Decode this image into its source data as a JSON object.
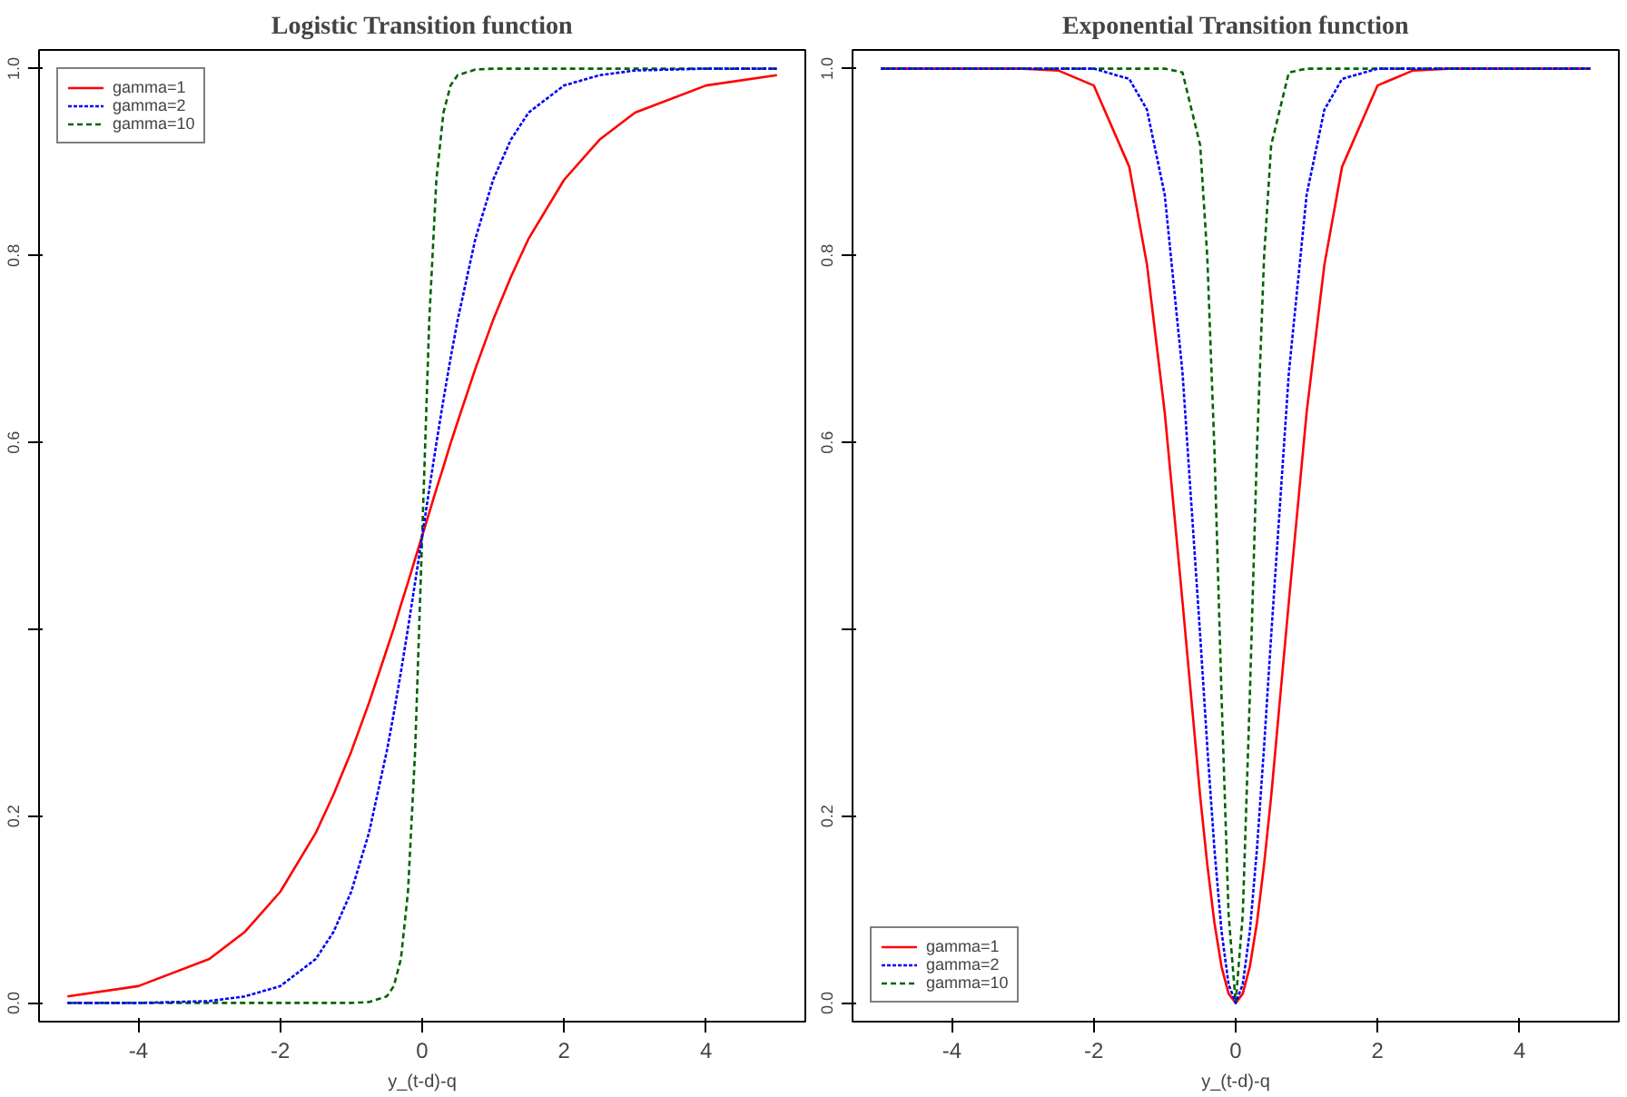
{
  "chart_data": [
    {
      "type": "line",
      "title": "Logistic Transition function",
      "xlabel": "y_(t-d)-q",
      "x": [
        -5,
        -4,
        -3,
        -2.5,
        -2,
        -1.5,
        -1.25,
        -1,
        -0.75,
        -0.5,
        -0.4,
        -0.3,
        -0.2,
        -0.1,
        0,
        0.1,
        0.2,
        0.3,
        0.4,
        0.5,
        0.75,
        1,
        1.25,
        1.5,
        2,
        2.5,
        3,
        4,
        5
      ],
      "series": [
        {
          "name": "gamma=1",
          "color": "#ff0000",
          "line_style": "solid",
          "values": [
            0.007,
            0.018,
            0.047,
            0.076,
            0.119,
            0.182,
            0.223,
            0.269,
            0.321,
            0.378,
            0.401,
            0.426,
            0.45,
            0.475,
            0.5,
            0.525,
            0.55,
            0.574,
            0.599,
            0.622,
            0.679,
            0.731,
            0.777,
            0.818,
            0.881,
            0.924,
            0.953,
            0.982,
            0.993
          ]
        },
        {
          "name": "gamma=2",
          "color": "#0000ff",
          "line_style": "dotted",
          "values": [
            0,
            0,
            0.002,
            0.007,
            0.018,
            0.047,
            0.076,
            0.119,
            0.182,
            0.269,
            0.31,
            0.354,
            0.401,
            0.45,
            0.5,
            0.55,
            0.599,
            0.646,
            0.69,
            0.731,
            0.818,
            0.881,
            0.924,
            0.953,
            0.982,
            0.993,
            0.998,
            1,
            1
          ]
        },
        {
          "name": "gamma=10",
          "color": "#006400",
          "line_style": "dashed",
          "values": [
            0,
            0,
            0,
            0,
            0,
            0,
            0,
            0,
            0.001,
            0.007,
            0.018,
            0.047,
            0.119,
            0.269,
            0.5,
            0.731,
            0.881,
            0.953,
            0.982,
            0.993,
            0.999,
            1,
            1,
            1,
            1,
            1,
            1,
            1,
            1
          ]
        }
      ],
      "xlim": [
        -5.4,
        5.4
      ],
      "ylim": [
        -0.02,
        1.02
      ],
      "xticks": [
        -4,
        -2,
        0,
        2,
        4
      ],
      "yticks": [
        {
          "value": 0,
          "label": "0.0"
        },
        0.2,
        {
          "value": 0.4,
          "label": null
        },
        0.6,
        0.8,
        {
          "value": 1,
          "label": "1.0"
        }
      ],
      "grid": false,
      "legend": "top left",
      "marker": "none"
    },
    {
      "type": "line",
      "title": "Exponential Transition function",
      "xlabel": "y_(t-d)-q",
      "x": [
        -5,
        -4,
        -3,
        -2.5,
        -2,
        -1.5,
        -1.25,
        -1,
        -0.75,
        -0.5,
        -0.4,
        -0.3,
        -0.2,
        -0.1,
        0,
        0.1,
        0.2,
        0.3,
        0.4,
        0.5,
        0.75,
        1,
        1.25,
        1.5,
        2,
        2.5,
        3,
        4,
        5
      ],
      "series": [
        {
          "name": "gamma=1",
          "color": "#ff0000",
          "line_style": "solid",
          "values": [
            1,
            1,
            1,
            0.998,
            0.982,
            0.895,
            0.79,
            0.632,
            0.43,
            0.221,
            0.148,
            0.086,
            0.039,
            0.01,
            0,
            0.01,
            0.039,
            0.086,
            0.148,
            0.221,
            0.43,
            0.632,
            0.79,
            0.895,
            0.982,
            0.998,
            1,
            1,
            1
          ]
        },
        {
          "name": "gamma=2",
          "color": "#0000ff",
          "line_style": "dotted",
          "values": [
            1,
            1,
            1,
            1,
            1,
            0.989,
            0.956,
            0.865,
            0.675,
            0.393,
            0.274,
            0.165,
            0.077,
            0.02,
            0,
            0.02,
            0.077,
            0.165,
            0.274,
            0.393,
            0.675,
            0.865,
            0.956,
            0.989,
            1,
            1,
            1,
            1,
            1
          ]
        },
        {
          "name": "gamma=10",
          "color": "#006400",
          "line_style": "dashed",
          "values": [
            1,
            1,
            1,
            1,
            1,
            1,
            1,
            1,
            0.996,
            0.918,
            0.798,
            0.593,
            0.33,
            0.095,
            0,
            0.095,
            0.33,
            0.593,
            0.798,
            0.918,
            0.996,
            1,
            1,
            1,
            1,
            1,
            1,
            1,
            1
          ]
        }
      ],
      "xlim": [
        -5.4,
        5.4
      ],
      "ylim": [
        -0.02,
        1.02
      ],
      "xticks": [
        -4,
        -2,
        0,
        2,
        4
      ],
      "yticks": [
        {
          "value": 0,
          "label": "0.0"
        },
        0.2,
        {
          "value": 0.4,
          "label": null
        },
        0.6,
        0.8,
        {
          "value": 1,
          "label": "1.0"
        }
      ],
      "grid": false,
      "legend": "bottom left",
      "marker": "none"
    }
  ]
}
